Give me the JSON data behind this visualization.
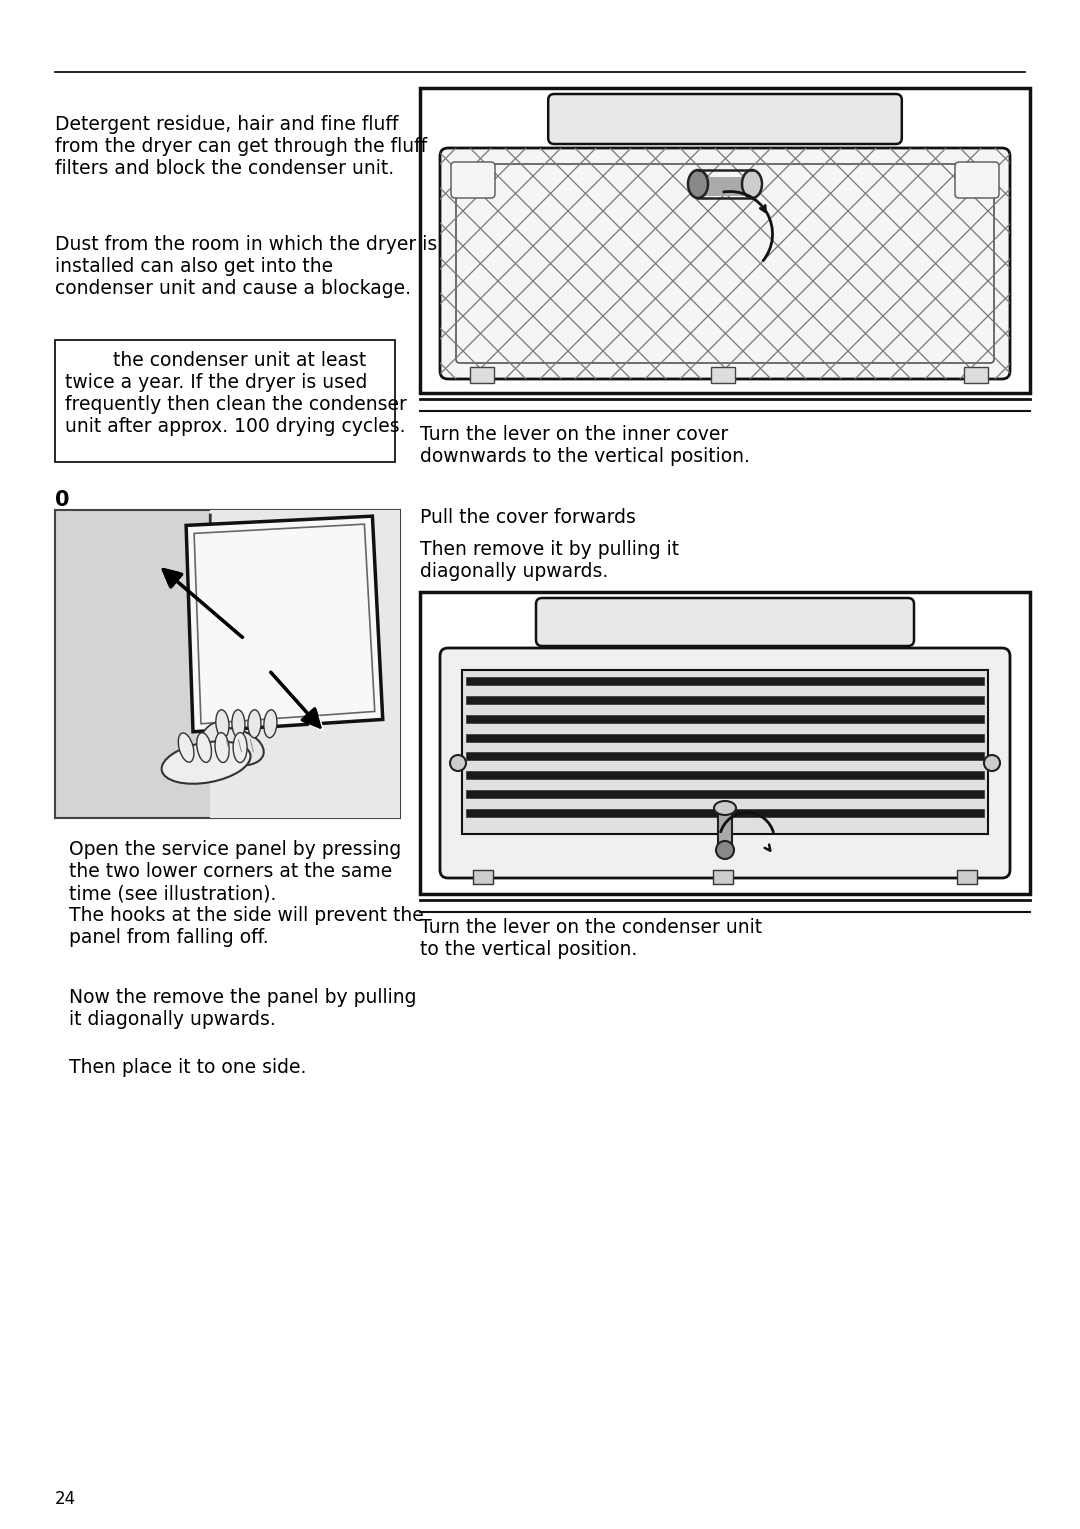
{
  "bg_color": "#ffffff",
  "text_color": "#000000",
  "para1": "Detergent residue, hair and fine fluff\nfrom the dryer can get through the fluff\nfilters and block the condenser unit.",
  "para2": "Dust from the room in which the dryer is\ninstalled can also get into the\ncondenser unit and cause a blockage.",
  "box_text": "        the condenser unit at least\ntwice a year. If the dryer is used\nfrequently then clean the condenser\nunit after approx. 100 drying cycles.",
  "step_label": "0",
  "caption_r1": "Turn the lever on the inner cover\ndownwards to the vertical position.",
  "caption_r2": "Pull the cover forwards",
  "caption_r3": "Then remove it by pulling it\ndiagonally upwards.",
  "caption_l1": "Open the service panel by pressing\nthe two lower corners at the same\ntime (see illustration).\nThe hooks at the side will prevent the\npanel from falling off.",
  "caption_l2": "Now the remove the panel by pulling\nit diagonally upwards.",
  "caption_l3": "Then place it to one side.",
  "caption_r4": "Turn the lever on the condenser unit\nto the vertical position.",
  "page_number": "24",
  "fs": 13.5,
  "lm": 55,
  "rc": 420
}
